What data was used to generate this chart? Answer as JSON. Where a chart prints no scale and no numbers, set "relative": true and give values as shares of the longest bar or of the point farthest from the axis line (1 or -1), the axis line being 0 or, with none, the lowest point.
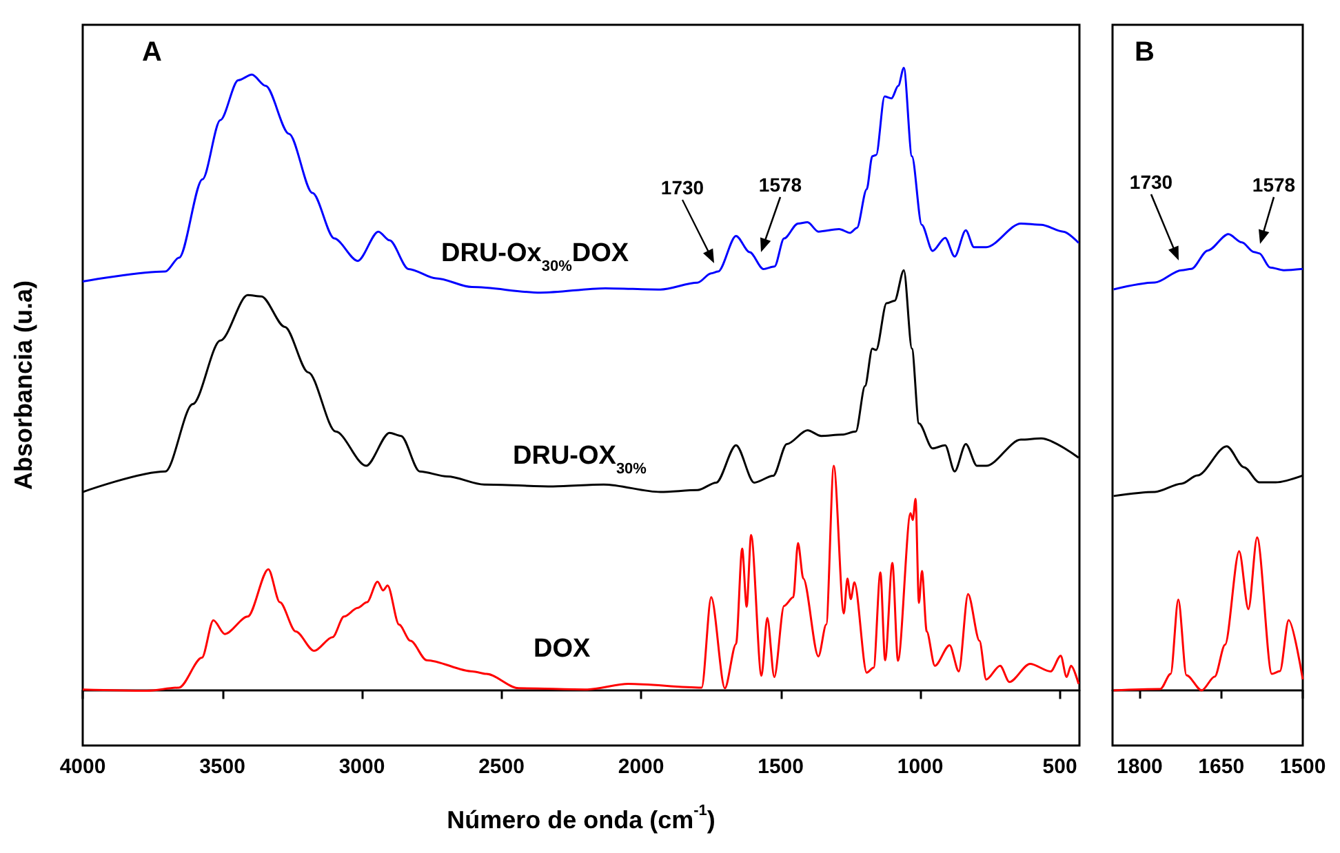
{
  "chart_data": [
    {
      "type": "line",
      "relative": true,
      "xlabel": "Número de onda (cm$^{-1}$)",
      "ylabel": "Absorbancia (u.a)",
      "xlim": [
        4000,
        430
      ],
      "xticks": [
        4000,
        3500,
        3000,
        2500,
        2000,
        1500,
        1000,
        500
      ],
      "tick_labels": "x",
      "marker": "none",
      "annotations": [
        "A",
        "1730",
        "1578"
      ],
      "series": [
        {
          "name": "DRU-Ox$_{30%}$DOX",
          "color": "#0000ff",
          "x": [
            4000,
            3704,
            3655,
            3571,
            3507,
            3443,
            3394,
            3345,
            3261,
            3177,
            3099,
            3015,
            2941,
            2901,
            2833,
            2734,
            2606,
            2360,
            2128,
            1931,
            1798,
            1749,
            1724,
            1660,
            1611,
            1562,
            1522,
            1488,
            1438,
            1404,
            1365,
            1291,
            1251,
            1227,
            1192,
            1172,
            1158,
            1128,
            1103,
            1079,
            1059,
            1030,
            995,
            956,
            911,
            877,
            837,
            808,
            764,
            640,
            567,
            488,
            433
          ],
          "values": [
            0.657,
            0.673,
            0.695,
            0.821,
            0.916,
            0.98,
            0.989,
            0.971,
            0.894,
            0.799,
            0.726,
            0.69,
            0.737,
            0.723,
            0.677,
            0.662,
            0.648,
            0.639,
            0.646,
            0.644,
            0.655,
            0.67,
            0.673,
            0.73,
            0.704,
            0.677,
            0.681,
            0.726,
            0.75,
            0.752,
            0.737,
            0.741,
            0.735,
            0.743,
            0.805,
            0.858,
            0.86,
            0.954,
            0.951,
            0.971,
            1.0,
            0.858,
            0.748,
            0.706,
            0.727,
            0.697,
            0.739,
            0.712,
            0.712,
            0.75,
            0.748,
            0.737,
            0.719
          ]
        },
        {
          "name": "DRU-OX$_{30%}$",
          "color": "#000000",
          "x": [
            4000,
            3704,
            3606,
            3507,
            3409,
            3360,
            3276,
            3192,
            3094,
            2985,
            2901,
            2860,
            2793,
            2694,
            2562,
            2315,
            2134,
            1931,
            1798,
            1731,
            1660,
            1595,
            1527,
            1478,
            1404,
            1355,
            1281,
            1231,
            1198,
            1172,
            1158,
            1121,
            1092,
            1059,
            1030,
            1005,
            956,
            911,
            877,
            837,
            797,
            764,
            640,
            567,
            433
          ],
          "values": [
            0.319,
            0.352,
            0.46,
            0.562,
            0.635,
            0.633,
            0.584,
            0.511,
            0.416,
            0.361,
            0.414,
            0.409,
            0.352,
            0.344,
            0.331,
            0.328,
            0.331,
            0.319,
            0.322,
            0.334,
            0.394,
            0.334,
            0.345,
            0.396,
            0.418,
            0.409,
            0.411,
            0.416,
            0.489,
            0.549,
            0.547,
            0.622,
            0.626,
            0.675,
            0.549,
            0.429,
            0.389,
            0.394,
            0.352,
            0.396,
            0.361,
            0.361,
            0.403,
            0.405,
            0.374
          ]
        },
        {
          "name": "DOX",
          "color": "#ff0000",
          "x": [
            4000,
            3770,
            3655,
            3573,
            3532,
            3491,
            3409,
            3335,
            3294,
            3237,
            3171,
            3105,
            3064,
            3015,
            2982,
            2944,
            2924,
            2908,
            2867,
            2826,
            2768,
            2604,
            2554,
            2439,
            2192,
            2046,
            1783,
            1749,
            1700,
            1660,
            1638,
            1622,
            1606,
            1569,
            1548,
            1523,
            1488,
            1455,
            1438,
            1419,
            1365,
            1337,
            1310,
            1274,
            1261,
            1249,
            1236,
            1192,
            1167,
            1143,
            1126,
            1100,
            1080,
            1035,
            1027,
            1017,
            1005,
            994,
            977,
            948,
            895,
            862,
            829,
            788,
            764,
            714,
            681,
            607,
            533,
            497,
            476,
            460,
            433
          ],
          "values": [
            0.002,
            0.0,
            0.005,
            0.053,
            0.113,
            0.091,
            0.119,
            0.195,
            0.142,
            0.095,
            0.064,
            0.086,
            0.119,
            0.133,
            0.142,
            0.175,
            0.161,
            0.169,
            0.106,
            0.08,
            0.049,
            0.031,
            0.027,
            0.004,
            0.002,
            0.011,
            0.005,
            0.15,
            0.004,
            0.075,
            0.228,
            0.135,
            0.25,
            0.024,
            0.117,
            0.022,
            0.136,
            0.15,
            0.237,
            0.18,
            0.055,
            0.106,
            0.361,
            0.124,
            0.18,
            0.147,
            0.174,
            0.029,
            0.037,
            0.19,
            0.049,
            0.205,
            0.048,
            0.285,
            0.274,
            0.308,
            0.141,
            0.192,
            0.095,
            0.04,
            0.073,
            0.031,
            0.155,
            0.08,
            0.018,
            0.04,
            0.014,
            0.043,
            0.031,
            0.056,
            0.022,
            0.04,
            0.011
          ]
        }
      ]
    },
    {
      "type": "line",
      "relative": true,
      "xlim": [
        1850,
        1500
      ],
      "xticks": [
        1800,
        1650,
        1500
      ],
      "tick_labels": "x",
      "marker": "none",
      "annotations": [
        "B",
        "1730",
        "1578"
      ],
      "series": [
        {
          "color": "#0000ff",
          "x": [
            1848,
            1772,
            1723,
            1705,
            1675,
            1637,
            1612,
            1590,
            1580,
            1560,
            1535,
            1500
          ],
          "values": [
            0.879,
            0.894,
            0.921,
            0.924,
            0.964,
            1.0,
            0.982,
            0.961,
            0.958,
            0.927,
            0.921,
            0.924
          ]
        },
        {
          "color": "#000000",
          "x": [
            1848,
            1772,
            1723,
            1694,
            1640,
            1608,
            1580,
            1550,
            1500
          ],
          "values": [
            0.426,
            0.435,
            0.453,
            0.471,
            0.535,
            0.489,
            0.456,
            0.456,
            0.471
          ]
        },
        {
          "color": "#ff0000",
          "x": [
            1848,
            1762,
            1743,
            1729,
            1714,
            1686,
            1662,
            1643,
            1617,
            1600,
            1584,
            1557,
            1542,
            1526,
            1500
          ],
          "values": [
            0.0,
            0.003,
            0.036,
            0.199,
            0.033,
            0.0,
            0.03,
            0.1,
            0.305,
            0.178,
            0.335,
            0.036,
            0.042,
            0.154,
            0.024
          ]
        }
      ]
    }
  ]
}
